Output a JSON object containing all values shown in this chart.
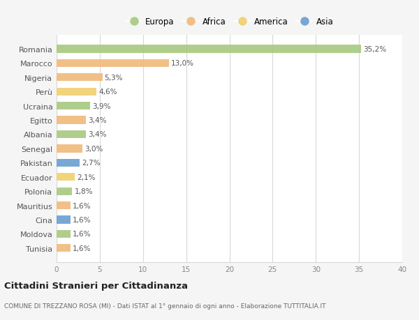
{
  "countries": [
    "Romania",
    "Marocco",
    "Nigeria",
    "Perù",
    "Ucraina",
    "Egitto",
    "Albania",
    "Senegal",
    "Pakistan",
    "Ecuador",
    "Polonia",
    "Mauritius",
    "Cina",
    "Moldova",
    "Tunisia"
  ],
  "values": [
    35.2,
    13.0,
    5.3,
    4.6,
    3.9,
    3.4,
    3.4,
    3.0,
    2.7,
    2.1,
    1.8,
    1.6,
    1.6,
    1.6,
    1.6
  ],
  "labels": [
    "35,2%",
    "13,0%",
    "5,3%",
    "4,6%",
    "3,9%",
    "3,4%",
    "3,4%",
    "3,0%",
    "2,7%",
    "2,1%",
    "1,8%",
    "1,6%",
    "1,6%",
    "1,6%",
    "1,6%"
  ],
  "continents": [
    "Europa",
    "Africa",
    "Africa",
    "America",
    "Europa",
    "Africa",
    "Europa",
    "Africa",
    "Asia",
    "America",
    "Europa",
    "Africa",
    "Asia",
    "Europa",
    "Africa"
  ],
  "continent_colors": {
    "Europa": "#a8c97f",
    "Africa": "#f0b97a",
    "America": "#f0d06e",
    "Asia": "#6a9ecf"
  },
  "legend_order": [
    "Europa",
    "Africa",
    "America",
    "Asia"
  ],
  "title": "Cittadini Stranieri per Cittadinanza",
  "subtitle": "COMUNE DI TREZZANO ROSA (MI) - Dati ISTAT al 1° gennaio di ogni anno - Elaborazione TUTTITALIA.IT",
  "xlim": [
    0,
    40
  ],
  "xticks": [
    0,
    5,
    10,
    15,
    20,
    25,
    30,
    35,
    40
  ],
  "bg_color": "#f5f5f5",
  "plot_bg_color": "#ffffff",
  "grid_color": "#d8d8d8"
}
